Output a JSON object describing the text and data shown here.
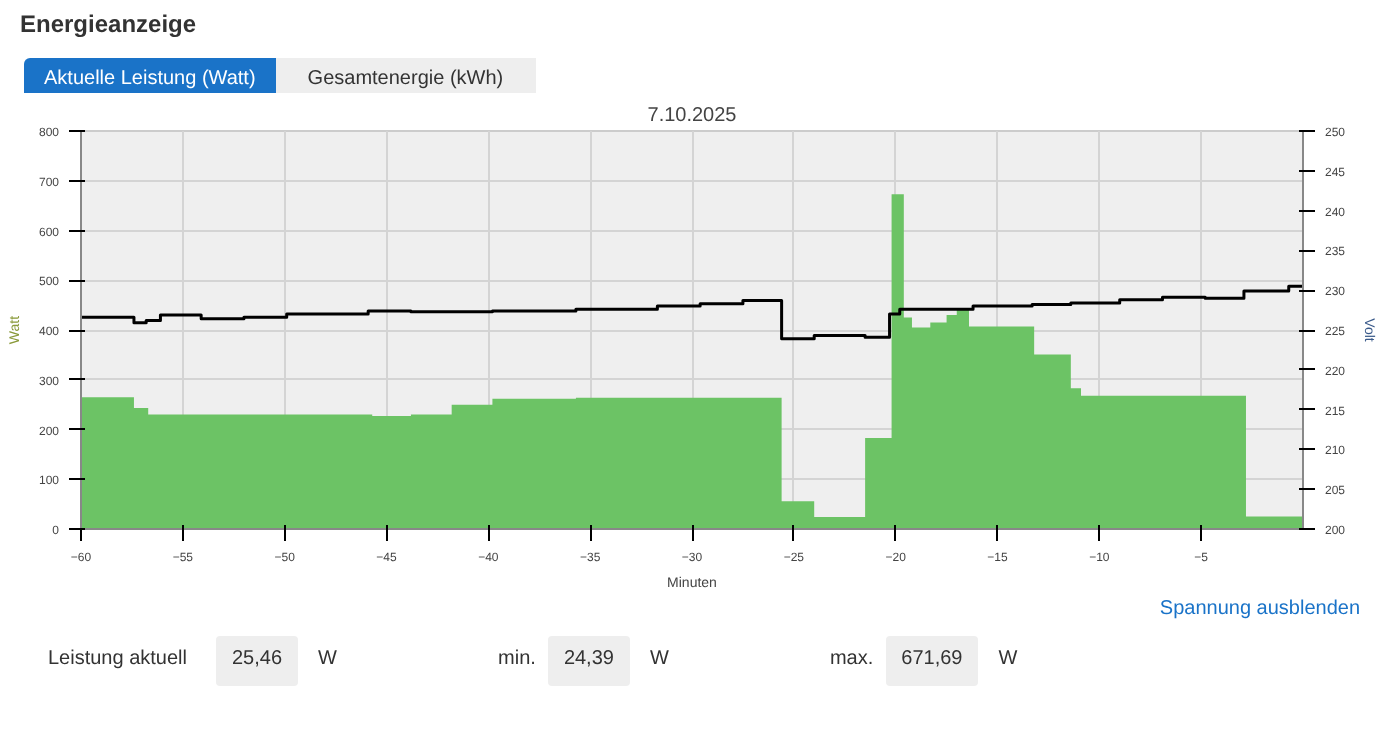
{
  "chart_data": {
    "type": "area",
    "title": "Energieanzeige",
    "subtitle": "7.10.2025",
    "xlabel": "Minuten",
    "ylabel": "Watt",
    "y2label": "Volt",
    "annotations": [
      "Aktuelle Leistung (Watt)",
      "Gesamtenergie (kWh)",
      "Spannung ausblenden",
      "Leistung aktuell",
      "25,46",
      "W",
      "min.",
      "24,39",
      "W",
      "max.",
      "671,69",
      "W"
    ],
    "series": [
      {
        "color": "#6cc365",
        "x": [
          -60,
          -57.4,
          -56.7,
          -45.7,
          -43.8,
          -41.8,
          -39.8,
          -35.7,
          -25.6,
          -24.0,
          -21.5,
          -20.2,
          -19.6,
          -19.2,
          -18.3,
          -17.5,
          -17.0,
          -16.4,
          -13.2,
          -11.4,
          -10.9,
          -2.8,
          0
        ],
        "values": [
          265,
          243,
          230,
          227,
          230,
          250,
          262,
          264,
          56,
          24,
          183,
          673,
          425,
          405,
          415,
          430,
          440,
          407,
          351,
          283,
          268,
          25,
          25
        ]
      },
      {
        "type": "step",
        "axis": "y2",
        "color": "#000000",
        "x": [
          -60,
          -57.4,
          -56.8,
          -56.1,
          -54.1,
          -52.0,
          -49.9,
          -45.9,
          -43.8,
          -39.8,
          -35.7,
          -31.7,
          -29.6,
          -27.5,
          -25.6,
          -24.0,
          -21.5,
          -20.3,
          -19.8,
          -16.2,
          -13.3,
          -11.4,
          -9.0,
          -6.9,
          -4.8,
          -2.9,
          -0.7,
          0
        ],
        "values": [
          226.6,
          225.9,
          226.2,
          226.9,
          226.4,
          226.6,
          227.0,
          227.4,
          227.3,
          227.4,
          227.6,
          228.0,
          228.3,
          228.7,
          223.9,
          224.3,
          224.1,
          227.0,
          227.6,
          228.0,
          228.2,
          228.4,
          228.8,
          229.1,
          229.0,
          229.9,
          230.5,
          230.5
        ]
      }
    ],
    "xlim": [
      -60,
      0
    ],
    "xticks": [
      -60,
      -55,
      -50,
      -45,
      -40,
      -35,
      -30,
      -25,
      -20,
      -15,
      -10,
      -5
    ],
    "ylim": [
      0,
      800
    ],
    "yticks": [
      0,
      100,
      200,
      300,
      400,
      500,
      600,
      700,
      800
    ],
    "y2lim": [
      200,
      250
    ],
    "y2ticks": [
      200,
      205,
      210,
      215,
      220,
      225,
      230,
      235,
      240,
      245,
      250
    ],
    "grid": true
  }
}
